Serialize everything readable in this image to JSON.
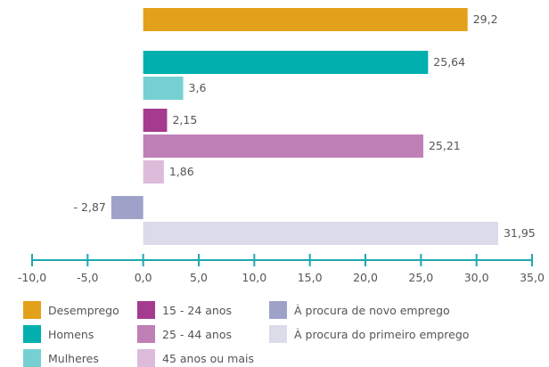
{
  "chart_data": {
    "type": "bar",
    "orientation": "horizontal",
    "xlim": [
      -10,
      35
    ],
    "x_ticks": [
      "-10,0",
      "-5,0",
      "0,0",
      "5,0",
      "10,0",
      "15,0",
      "20,0",
      "25,0",
      "30,0",
      "35,0"
    ],
    "grid": false,
    "legend_position": "bottom",
    "series": [
      {
        "name": "Desemprego",
        "value": 29.2,
        "label": "29,2",
        "color": "#E3A01B"
      },
      {
        "name": "Homens",
        "value": 25.64,
        "label": "25,64",
        "color": "#00AFAE"
      },
      {
        "name": "Mulheres",
        "value": 3.6,
        "label": "3,6",
        "color": "#76D0D2"
      },
      {
        "name": "15 - 24 anos",
        "value": 2.15,
        "label": "2,15",
        "color": "#A53B8E"
      },
      {
        "name": "25 - 44 anos",
        "value": 25.21,
        "label": "25,21",
        "color": "#BF80B6"
      },
      {
        "name": "45 anos ou mais",
        "value": 1.86,
        "label": "1,86",
        "color": "#DDBCDB"
      },
      {
        "name": "À procura de novo emprego",
        "value": -2.87,
        "label": "- 2,87",
        "color": "#9FA2C8"
      },
      {
        "name": "À procura do primeiro emprego",
        "value": 31.95,
        "label": "31,95",
        "color": "#DBDBEA"
      }
    ],
    "axis_color": "#1FA8AE"
  }
}
